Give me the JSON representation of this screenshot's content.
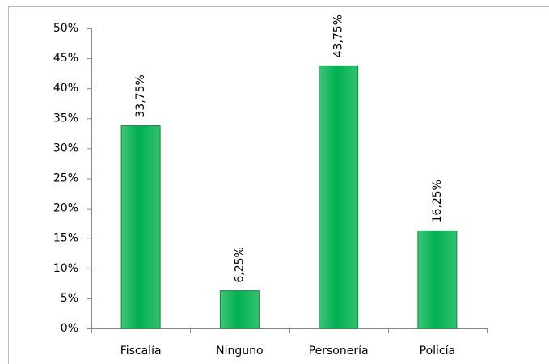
{
  "chart_data": {
    "type": "bar",
    "categories": [
      "Fiscalía",
      "Ninguno",
      "Personería",
      "Policía"
    ],
    "values": [
      33.75,
      6.25,
      43.75,
      16.25
    ],
    "value_labels": [
      "33,75%",
      "6,25%",
      "43,75%",
      "16,25%"
    ],
    "color": "#00b050",
    "ylim": [
      0,
      50
    ],
    "yticks": [
      {
        "value": 0,
        "label": "0%"
      },
      {
        "value": 5,
        "label": "5%"
      },
      {
        "value": 10,
        "label": "10%"
      },
      {
        "value": 15,
        "label": "15%"
      },
      {
        "value": 20,
        "label": "20%"
      },
      {
        "value": 25,
        "label": "25%"
      },
      {
        "value": 30,
        "label": "30%"
      },
      {
        "value": 35,
        "label": "35%"
      },
      {
        "value": 40,
        "label": "40%"
      },
      {
        "value": 45,
        "label": "45%"
      },
      {
        "value": 50,
        "label": "50%"
      }
    ],
    "grid": false
  }
}
